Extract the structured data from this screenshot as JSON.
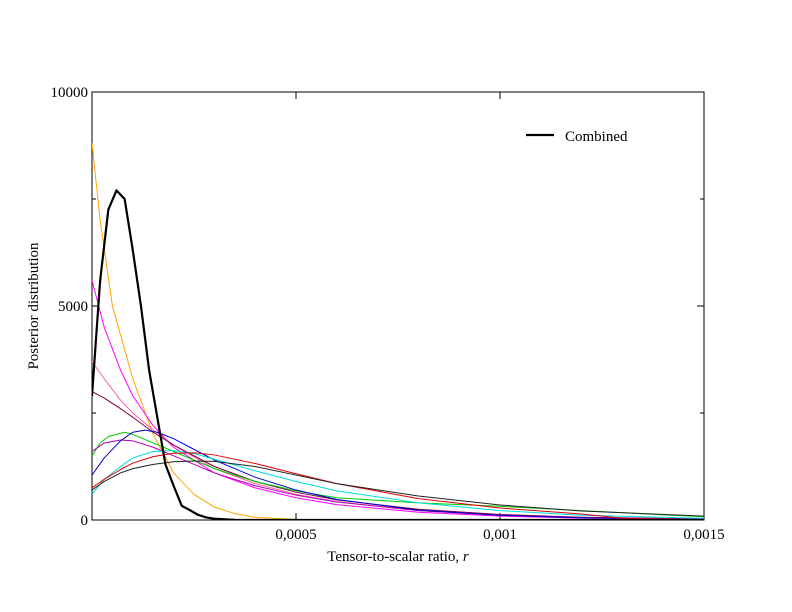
{
  "chart_data": {
    "type": "line",
    "title": "",
    "xlabel": "Tensor-to-scalar ratio, ",
    "xlabel_var": "r",
    "ylabel": "Posterior distribution",
    "xlim": [
      0,
      0.0015
    ],
    "ylim": [
      0,
      10000
    ],
    "x_ticks": [
      {
        "value": 0.0005,
        "label": "0,0005"
      },
      {
        "value": 0.001,
        "label": "0,001"
      },
      {
        "value": 0.0015,
        "label": "0,0015"
      }
    ],
    "y_ticks": [
      {
        "value": 0,
        "label": "0"
      },
      {
        "value": 5000,
        "label": "5000"
      },
      {
        "value": 10000,
        "label": "10000"
      }
    ],
    "y_minor_ticks": [
      2500,
      7500
    ],
    "grid": false,
    "legend": {
      "placement": "top-right",
      "entries": [
        {
          "name": "Combined",
          "color": "#000000"
        }
      ]
    },
    "series": [
      {
        "name": "Combined",
        "color": "#000000",
        "width": 2.2,
        "points": [
          [
            0,
            2900
          ],
          [
            2e-05,
            5600
          ],
          [
            4e-05,
            7250
          ],
          [
            6e-05,
            7700
          ],
          [
            8e-05,
            7500
          ],
          [
            0.0001,
            6300
          ],
          [
            0.00012,
            5000
          ],
          [
            0.00014,
            3500
          ],
          [
            0.00016,
            2400
          ],
          [
            0.00018,
            1300
          ],
          [
            0.0002,
            800
          ],
          [
            0.00022,
            330
          ],
          [
            0.00024,
            230
          ],
          [
            0.00026,
            120
          ],
          [
            0.00028,
            60
          ],
          [
            0.0003,
            30
          ],
          [
            0.00035,
            5
          ],
          [
            0.0004,
            0
          ],
          [
            0.0015,
            0
          ]
        ]
      },
      {
        "color": "#ffa500",
        "width": 1,
        "points": [
          [
            0,
            8800
          ],
          [
            2e-05,
            7000
          ],
          [
            5e-05,
            5000
          ],
          [
            0.0001,
            3300
          ],
          [
            0.00015,
            2000
          ],
          [
            0.0002,
            1100
          ],
          [
            0.00025,
            600
          ],
          [
            0.0003,
            300
          ],
          [
            0.00035,
            150
          ],
          [
            0.0004,
            60
          ],
          [
            0.0005,
            15
          ],
          [
            0.0006,
            0
          ],
          [
            0.0015,
            0
          ]
        ]
      },
      {
        "color": "#ff00ff",
        "width": 1,
        "points": [
          [
            0,
            5600
          ],
          [
            3e-05,
            4500
          ],
          [
            7e-05,
            3500
          ],
          [
            0.0001,
            2900
          ],
          [
            0.00015,
            2200
          ],
          [
            0.0002,
            1700
          ],
          [
            0.0003,
            1100
          ],
          [
            0.0004,
            750
          ],
          [
            0.0005,
            520
          ],
          [
            0.0006,
            360
          ],
          [
            0.0008,
            180
          ],
          [
            0.001,
            90
          ],
          [
            0.0012,
            45
          ],
          [
            0.0015,
            15
          ]
        ]
      },
      {
        "color": "#ff60a0",
        "width": 1,
        "points": [
          [
            0,
            3700
          ],
          [
            3e-05,
            3300
          ],
          [
            7e-05,
            2800
          ],
          [
            0.0001,
            2500
          ],
          [
            0.00015,
            2100
          ],
          [
            0.0002,
            1750
          ],
          [
            0.0003,
            1200
          ],
          [
            0.0004,
            850
          ],
          [
            0.0005,
            600
          ],
          [
            0.0006,
            430
          ],
          [
            0.0008,
            220
          ],
          [
            0.001,
            110
          ],
          [
            0.0012,
            55
          ],
          [
            0.0015,
            20
          ]
        ]
      },
      {
        "color": "#800040",
        "width": 1,
        "points": [
          [
            0,
            3000
          ],
          [
            3e-05,
            2850
          ],
          [
            7e-05,
            2600
          ],
          [
            0.0001,
            2400
          ],
          [
            0.00015,
            2050
          ],
          [
            0.0002,
            1750
          ],
          [
            0.0003,
            1250
          ],
          [
            0.0004,
            900
          ],
          [
            0.0005,
            650
          ],
          [
            0.0006,
            470
          ],
          [
            0.0008,
            250
          ],
          [
            0.001,
            130
          ],
          [
            0.0012,
            65
          ],
          [
            0.0015,
            25
          ]
        ]
      },
      {
        "color": "#00cc00",
        "width": 1,
        "points": [
          [
            0,
            1500
          ],
          [
            2e-05,
            1800
          ],
          [
            4e-05,
            1950
          ],
          [
            8e-05,
            2050
          ],
          [
            0.0001,
            2000
          ],
          [
            0.00015,
            1800
          ],
          [
            0.0002,
            1600
          ],
          [
            0.0003,
            1200
          ],
          [
            0.0004,
            900
          ],
          [
            0.0005,
            680
          ],
          [
            0.0006,
            520
          ],
          [
            0.0008,
            400
          ],
          [
            0.001,
            320
          ],
          [
            0.0012,
            220
          ],
          [
            0.0014,
            120
          ],
          [
            0.0015,
            80
          ]
        ]
      },
      {
        "color": "#b000b0",
        "width": 1,
        "points": [
          [
            0,
            1600
          ],
          [
            3e-05,
            1800
          ],
          [
            7e-05,
            1870
          ],
          [
            0.0001,
            1850
          ],
          [
            0.00015,
            1700
          ],
          [
            0.0002,
            1500
          ],
          [
            0.0003,
            1100
          ],
          [
            0.0004,
            800
          ],
          [
            0.0005,
            580
          ],
          [
            0.0006,
            420
          ],
          [
            0.0008,
            220
          ],
          [
            0.001,
            110
          ],
          [
            0.0012,
            55
          ],
          [
            0.0015,
            20
          ]
        ]
      },
      {
        "color": "#0000cc",
        "width": 1,
        "points": [
          [
            0,
            1050
          ],
          [
            3e-05,
            1450
          ],
          [
            7e-05,
            1850
          ],
          [
            0.0001,
            2050
          ],
          [
            0.00013,
            2100
          ],
          [
            0.00016,
            2050
          ],
          [
            0.0002,
            1900
          ],
          [
            0.00025,
            1650
          ],
          [
            0.0003,
            1400
          ],
          [
            0.0004,
            1000
          ],
          [
            0.0005,
            700
          ],
          [
            0.0006,
            480
          ],
          [
            0.0008,
            230
          ],
          [
            0.001,
            110
          ],
          [
            0.0012,
            50
          ],
          [
            0.0015,
            15
          ]
        ]
      },
      {
        "color": "#00dddd",
        "width": 1,
        "points": [
          [
            0,
            600
          ],
          [
            3e-05,
            950
          ],
          [
            7e-05,
            1250
          ],
          [
            0.0001,
            1450
          ],
          [
            0.00015,
            1600
          ],
          [
            0.0002,
            1620
          ],
          [
            0.00025,
            1550
          ],
          [
            0.0003,
            1420
          ],
          [
            0.0004,
            1150
          ],
          [
            0.0005,
            900
          ],
          [
            0.0006,
            680
          ],
          [
            0.0008,
            400
          ],
          [
            0.001,
            220
          ],
          [
            0.0012,
            110
          ],
          [
            0.0015,
            40
          ]
        ]
      },
      {
        "color": "#dd0000",
        "width": 1,
        "points": [
          [
            0,
            750
          ],
          [
            3e-05,
            950
          ],
          [
            7e-05,
            1180
          ],
          [
            0.0001,
            1330
          ],
          [
            0.00015,
            1480
          ],
          [
            0.0002,
            1560
          ],
          [
            0.00025,
            1570
          ],
          [
            0.0003,
            1520
          ],
          [
            0.0004,
            1320
          ],
          [
            0.0005,
            1080
          ],
          [
            0.0006,
            850
          ],
          [
            0.0008,
            500
          ],
          [
            0.001,
            280
          ],
          [
            0.0012,
            140
          ],
          [
            0.0013,
            40
          ],
          [
            0.0015,
            10
          ]
        ]
      },
      {
        "color": "#222222",
        "width": 1,
        "points": [
          [
            0,
            700
          ],
          [
            3e-05,
            900
          ],
          [
            7e-05,
            1100
          ],
          [
            0.0001,
            1200
          ],
          [
            0.00015,
            1300
          ],
          [
            0.0002,
            1360
          ],
          [
            0.00025,
            1380
          ],
          [
            0.0003,
            1370
          ],
          [
            0.0004,
            1250
          ],
          [
            0.0005,
            1050
          ],
          [
            0.0006,
            850
          ],
          [
            0.0008,
            560
          ],
          [
            0.001,
            350
          ],
          [
            0.0012,
            210
          ],
          [
            0.0015,
            90
          ]
        ]
      }
    ]
  }
}
